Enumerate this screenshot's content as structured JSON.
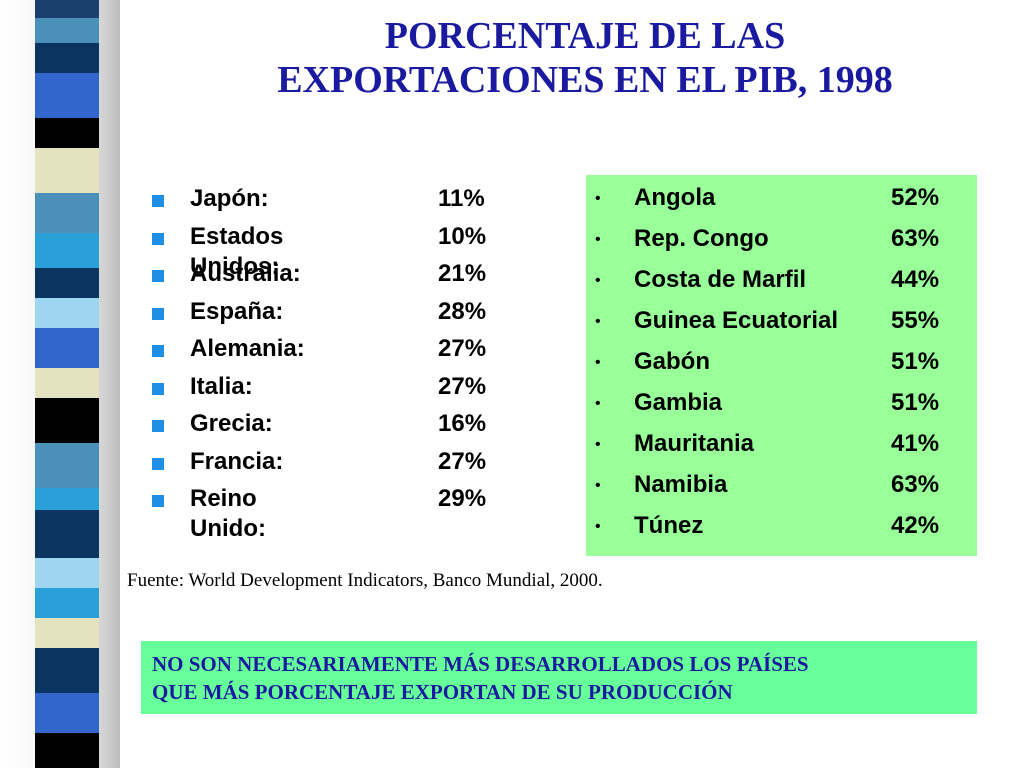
{
  "slide": {
    "title_line1": "PORCENTAJE DE LAS",
    "title_line2": "EXPORTACIONES EN EL PIB, 1998",
    "source": "Fuente: World Development Indicators, Banco Mundial, 2000.",
    "note_line1": "NO SON NECESARIAMENTE MÁS DESARROLLADOS LOS PAÍSES",
    "note_line2": "QUE MÁS PORCENTAJE EXPORTAN DE SU PRODUCCIÓN"
  },
  "colors": {
    "title": "#1a1aa0",
    "bullet_square": "#1f8fe6",
    "africa_box": "#99ff99",
    "note_box": "#66ff99"
  },
  "rich_countries": [
    {
      "name": "Japón:",
      "value": "11%"
    },
    {
      "name": "Estados Unidos:",
      "value": "10%"
    },
    {
      "name": "Australia:",
      "value": "21%"
    },
    {
      "name": "España:",
      "value": "28%"
    },
    {
      "name": "Alemania:",
      "value": "27%"
    },
    {
      "name": "Italia:",
      "value": "27%"
    },
    {
      "name": "Grecia:",
      "value": "16%"
    },
    {
      "name": "Francia:",
      "value": "27%"
    },
    {
      "name": "Reino Unido:",
      "value": "29%"
    }
  ],
  "african_countries": [
    {
      "name": "Angola",
      "value": "52%"
    },
    {
      "name": "Rep. Congo",
      "value": "63%"
    },
    {
      "name": "Costa de Marfil",
      "value": "44%"
    },
    {
      "name": "Guinea Ecuatorial",
      "value": "55%"
    },
    {
      "name": "Gabón",
      "value": "51%"
    },
    {
      "name": "Gambia",
      "value": "51%"
    },
    {
      "name": "Mauritania",
      "value": "41%"
    },
    {
      "name": "Namibia",
      "value": "63%"
    },
    {
      "name": "Túnez",
      "value": "42%"
    }
  ]
}
